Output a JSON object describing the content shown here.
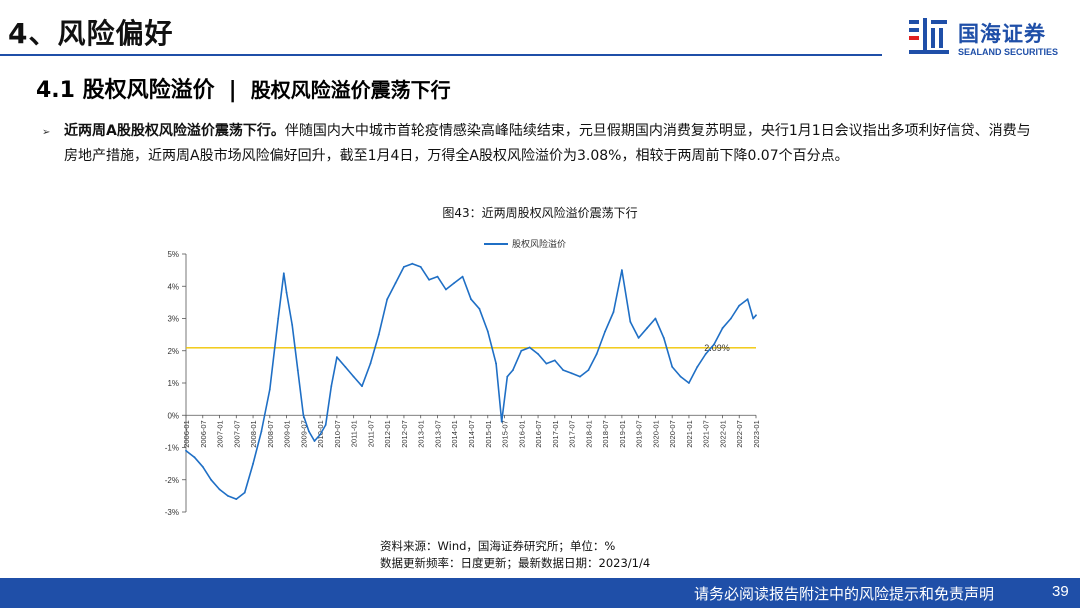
{
  "header": {
    "section_title": "4、风险偏好",
    "logo_cn": "国海证券",
    "logo_en": "SEALAND SECURITIES"
  },
  "subtitle": {
    "number": "4.1 股权风险溢价",
    "separator": "|",
    "topic": "股权风险溢价震荡下行"
  },
  "bullet": {
    "lead": "近两周A股股权风险溢价震荡下行。",
    "text": "伴随国内大中城市首轮疫情感染高峰陆续结束，元旦假期国内消费复苏明显，央行1月1日会议指出多项利好信贷、消费与房地产措施，近两周A股市场风险偏好回升，截至1月4日，万得全A股权风险溢价为3.08%，相较于两周前下降0.07个百分点。"
  },
  "figure": {
    "title": "图43：近两周股权风险溢价震荡下行"
  },
  "source": {
    "line1": "资料来源：Wind，国海证券研究所；单位：%",
    "line2": "数据更新频率：日度更新；最新数据日期：2023/1/4"
  },
  "footer": {
    "disclaimer": "请务必阅读报告附注中的风险提示和免责声明",
    "page": "39"
  },
  "colors": {
    "brand": "#1f4fa8",
    "series": "#1f6fc5",
    "reference_line": "#f0c400"
  },
  "chart_data": {
    "type": "line",
    "xlabel": "",
    "ylabel": "",
    "ylim": [
      -3,
      5
    ],
    "yticks": [
      -3,
      -2,
      -1,
      0,
      1,
      2,
      3,
      4,
      5
    ],
    "ytick_labels": [
      "-3%",
      "-2%",
      "-1%",
      "0%",
      "1%",
      "2%",
      "3%",
      "4%",
      "5%"
    ],
    "xlim": [
      "2006-01",
      "2023-01"
    ],
    "xtick_labels": [
      "2006-01",
      "2006-07",
      "2007-01",
      "2007-07",
      "2008-01",
      "2008-07",
      "2009-01",
      "2009-07",
      "2010-01",
      "2010-07",
      "2011-01",
      "2011-07",
      "2012-01",
      "2012-07",
      "2013-01",
      "2013-07",
      "2014-01",
      "2014-07",
      "2015-01",
      "2015-07",
      "2016-01",
      "2016-07",
      "2017-01",
      "2017-07",
      "2018-01",
      "2018-07",
      "2019-01",
      "2019-07",
      "2020-01",
      "2020-07",
      "2021-01",
      "2021-07",
      "2022-01",
      "2022-07",
      "2023-01"
    ],
    "legend": "top-center",
    "grid": false,
    "reference_line": {
      "value": 2.09,
      "label": "2.09%"
    },
    "series": [
      {
        "name": "股权风险溢价",
        "x": [
          "2006-01",
          "2006-04",
          "2006-07",
          "2006-10",
          "2007-01",
          "2007-04",
          "2007-07",
          "2007-10",
          "2008-01",
          "2008-04",
          "2008-07",
          "2008-10",
          "2008-12",
          "2009-01",
          "2009-03",
          "2009-05",
          "2009-07",
          "2009-09",
          "2009-11",
          "2010-01",
          "2010-03",
          "2010-05",
          "2010-07",
          "2010-10",
          "2011-01",
          "2011-04",
          "2011-07",
          "2011-10",
          "2012-01",
          "2012-04",
          "2012-07",
          "2012-10",
          "2013-01",
          "2013-04",
          "2013-07",
          "2013-10",
          "2014-01",
          "2014-04",
          "2014-07",
          "2014-10",
          "2015-01",
          "2015-04",
          "2015-06",
          "2015-08",
          "2015-10",
          "2016-01",
          "2016-04",
          "2016-07",
          "2016-10",
          "2017-01",
          "2017-04",
          "2017-07",
          "2017-10",
          "2018-01",
          "2018-04",
          "2018-07",
          "2018-10",
          "2019-01",
          "2019-04",
          "2019-07",
          "2019-10",
          "2020-01",
          "2020-04",
          "2020-07",
          "2020-10",
          "2021-01",
          "2021-04",
          "2021-07",
          "2021-10",
          "2022-01",
          "2022-04",
          "2022-07",
          "2022-10",
          "2022-12",
          "2023-01"
        ],
        "values": [
          -1.1,
          -1.3,
          -1.6,
          -2.0,
          -2.3,
          -2.5,
          -2.6,
          -2.4,
          -1.5,
          -0.5,
          0.8,
          3.0,
          4.4,
          3.8,
          2.8,
          1.4,
          0.0,
          -0.5,
          -0.8,
          -0.6,
          -0.3,
          0.9,
          1.8,
          1.5,
          1.2,
          0.9,
          1.6,
          2.5,
          3.6,
          4.1,
          4.6,
          4.7,
          4.6,
          4.2,
          4.3,
          3.9,
          4.1,
          4.3,
          3.6,
          3.3,
          2.6,
          1.6,
          -0.2,
          1.2,
          1.4,
          2.0,
          2.1,
          1.9,
          1.6,
          1.7,
          1.4,
          1.3,
          1.2,
          1.4,
          1.9,
          2.6,
          3.2,
          4.5,
          2.9,
          2.4,
          2.7,
          3.0,
          2.4,
          1.5,
          1.2,
          1.0,
          1.5,
          1.9,
          2.2,
          2.7,
          3.0,
          3.4,
          3.6,
          3.0,
          3.1
        ]
      }
    ]
  }
}
